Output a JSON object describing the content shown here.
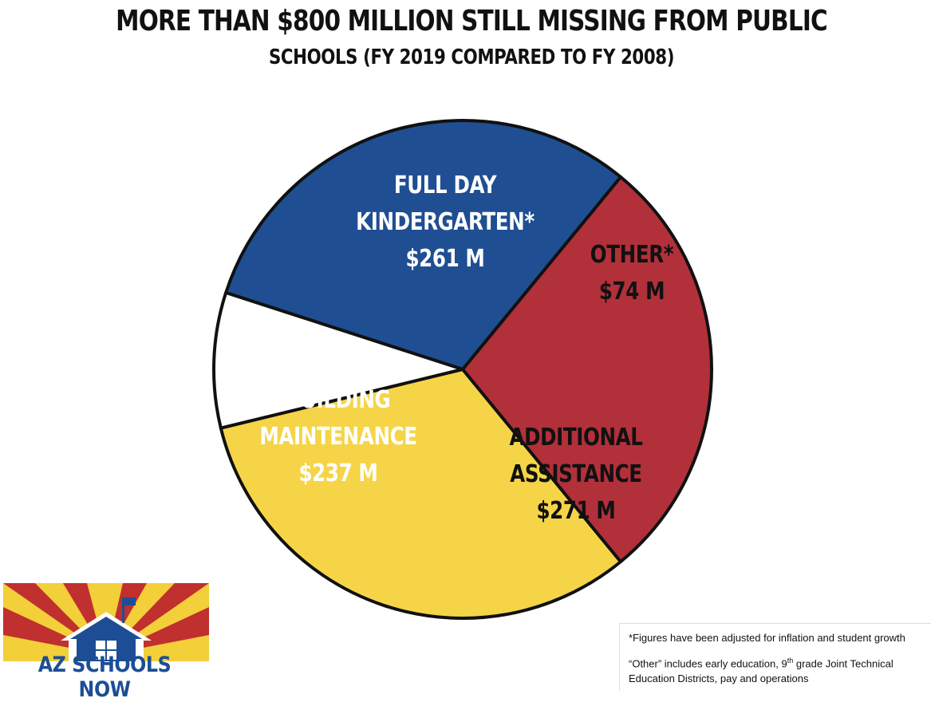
{
  "chart_data": {
    "type": "pie",
    "title": "MORE THAN $800 MILLION STILL MISSING FROM PUBLIC",
    "subtitle": "SCHOOLS (FY 2019 COMPARED TO FY 2008)",
    "slices": [
      {
        "name_lines": [
          "FULL DAY",
          "KINDERGARTEN*"
        ],
        "value": 261,
        "value_label": "$261 M",
        "color": "#1f4e93",
        "text_color": "#ffffff"
      },
      {
        "name_lines": [
          "OTHER*"
        ],
        "value": 74,
        "value_label": "$74 M",
        "color": "#ffffff",
        "text_color": "#111111"
      },
      {
        "name_lines": [
          "ADDITIONAL",
          "ASSISTANCE"
        ],
        "value": 271,
        "value_label": "$271 M",
        "color": "#f5d547",
        "text_color": "#111111"
      },
      {
        "name_lines": [
          "BUILDING",
          "MAINTENANCE"
        ],
        "value": 237,
        "value_label": "$237 M",
        "color": "#b2303a",
        "text_color": "#ffffff"
      }
    ],
    "legend": "none"
  },
  "logo": {
    "text": "AZ SCHOOLS NOW"
  },
  "notes": {
    "line1": "*Figures have been adjusted for inflation and student growth",
    "line2_pre": "“Other” includes early education, 9",
    "line2_sup": "th",
    "line2_post": " grade Joint Technical Education Districts, pay and operations"
  },
  "colors": {
    "outline": "#111111",
    "logo_blue": "#1d4e95",
    "logo_red": "#c0302e",
    "logo_yellow": "#f3cf3a"
  }
}
